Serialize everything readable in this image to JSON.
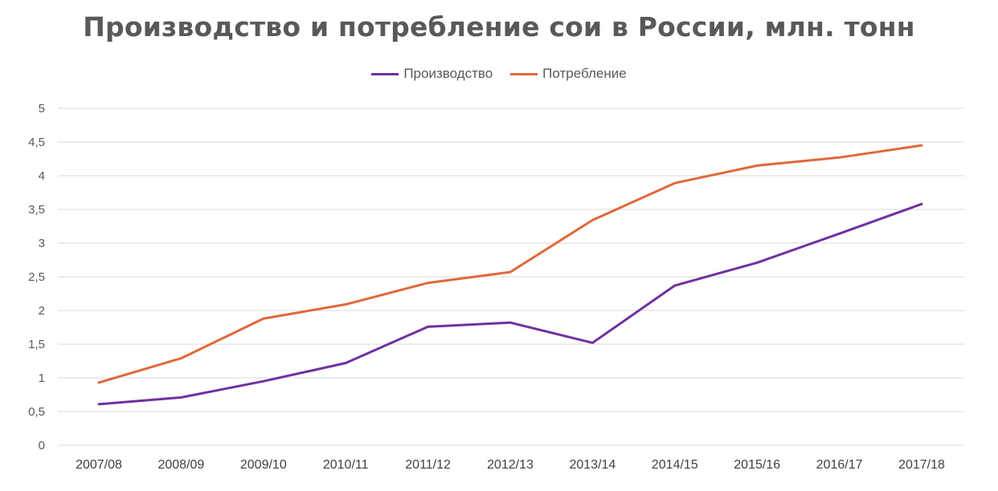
{
  "chart_data": {
    "type": "line",
    "title": "Производство и потребление сои в России, млн. тонн",
    "xlabel": "",
    "ylabel": "",
    "categories": [
      "2007/08",
      "2008/09",
      "2009/10",
      "2010/11",
      "2011/12",
      "2012/13",
      "2013/14",
      "2014/15",
      "2015/16",
      "2016/17",
      "2017/18"
    ],
    "ylim": [
      0,
      5
    ],
    "yticks": [
      0,
      0.5,
      1,
      1.5,
      2,
      2.5,
      3,
      3.5,
      4,
      4.5,
      5
    ],
    "ytick_labels": [
      "0",
      "0,5",
      "1",
      "1,5",
      "2",
      "2,5",
      "3",
      "3,5",
      "4",
      "4,5",
      "5"
    ],
    "grid": "horizontal",
    "legend_position": "top-center",
    "series": [
      {
        "name": "Производство",
        "color": "#7030A0",
        "values": [
          0.61,
          0.71,
          0.95,
          1.22,
          1.76,
          1.82,
          1.52,
          2.37,
          2.71,
          3.14,
          3.58
        ]
      },
      {
        "name": "Потребление",
        "color": "#E0683A",
        "values": [
          0.93,
          1.29,
          1.88,
          2.09,
          2.41,
          2.57,
          3.34,
          3.89,
          4.15,
          4.27,
          4.45
        ]
      }
    ]
  }
}
